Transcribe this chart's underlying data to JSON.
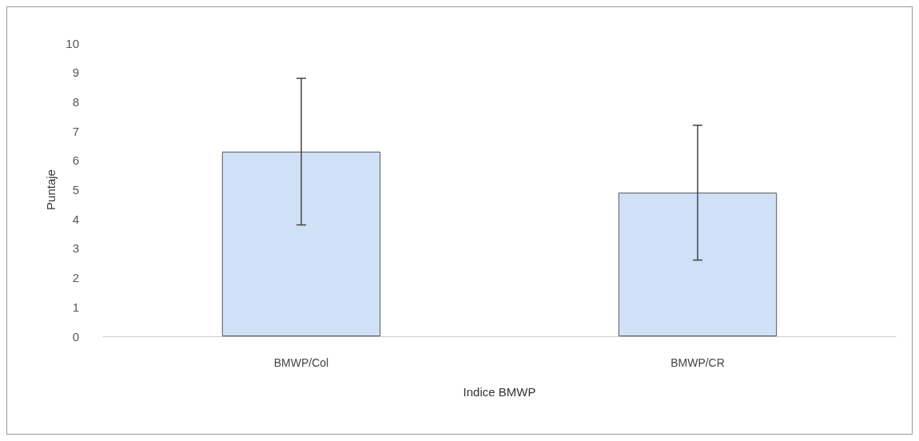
{
  "chart_data": {
    "type": "bar",
    "xlabel": "Indice BMWP",
    "ylabel": "Puntaje",
    "categories": [
      "BMWP/Col",
      "BMWP/CR"
    ],
    "values": [
      6.3,
      4.9
    ],
    "errors": [
      2.5,
      2.3
    ],
    "color": "#cfe0f7",
    "ylim": [
      0,
      10
    ],
    "yticks": [
      0,
      1,
      2,
      3,
      4,
      5,
      6,
      7,
      8,
      9,
      10
    ],
    "grid": false
  }
}
